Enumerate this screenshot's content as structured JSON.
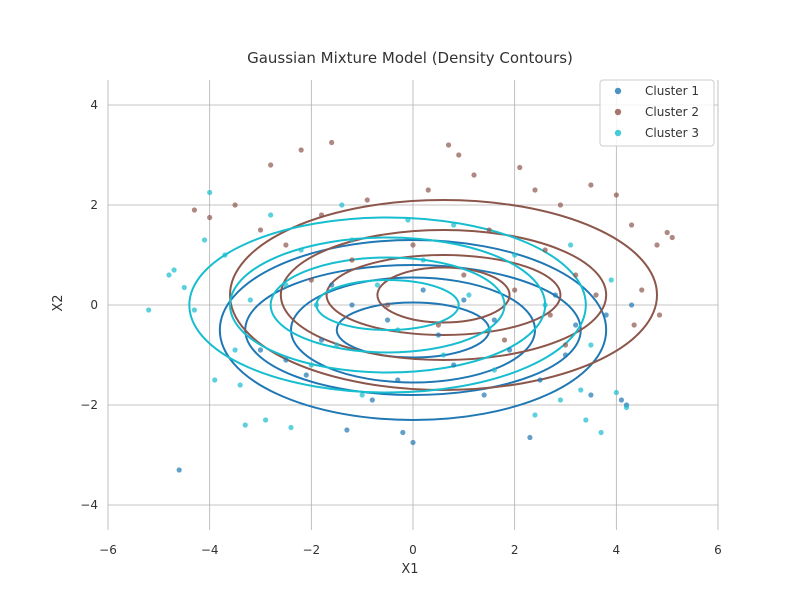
{
  "chart_data": {
    "type": "scatter",
    "title": "Gaussian Mixture Model (Density Contours)",
    "xlabel": "X1",
    "ylabel": "X2",
    "xlim": [
      -6,
      6
    ],
    "ylim": [
      -4.5,
      4.5
    ],
    "x_ticks": [
      -6,
      -4,
      -2,
      0,
      2,
      4,
      6
    ],
    "y_ticks": [
      -4,
      -2,
      0,
      2,
      4
    ],
    "x_tick_labels": [
      "−6",
      "−4",
      "−2",
      "0",
      "2",
      "4",
      "6"
    ],
    "y_tick_labels": [
      "−4",
      "−2",
      "0",
      "2",
      "4"
    ],
    "grid": true,
    "legend_position": "top-right",
    "series": [
      {
        "name": "Cluster 1",
        "color": "#1f77b4",
        "center": [
          0,
          -0.5
        ],
        "std": [
          2.0,
          1.0
        ],
        "contour_semi_axes": [
          [
            1.5,
            0.55
          ],
          [
            2.4,
            1.05
          ],
          [
            3.3,
            1.3
          ],
          [
            3.8,
            1.8
          ]
        ],
        "points": [
          [
            -4.6,
            -3.3
          ],
          [
            0.0,
            -2.75
          ],
          [
            -0.2,
            -2.55
          ],
          [
            2.3,
            -2.65
          ],
          [
            4.1,
            -1.9
          ],
          [
            4.2,
            -2.0
          ],
          [
            3.5,
            -1.8
          ],
          [
            -1.3,
            -2.5
          ],
          [
            -0.8,
            -1.9
          ],
          [
            1.4,
            -1.8
          ],
          [
            2.5,
            -1.5
          ],
          [
            -2.1,
            -1.4
          ],
          [
            -3.0,
            -0.9
          ],
          [
            3.2,
            -0.4
          ],
          [
            3.8,
            -0.2
          ],
          [
            4.3,
            0.0
          ],
          [
            0.5,
            -0.6
          ],
          [
            -0.5,
            -0.3
          ],
          [
            1.0,
            0.1
          ],
          [
            -1.2,
            0.0
          ],
          [
            1.9,
            -0.9
          ],
          [
            -1.8,
            -0.7
          ],
          [
            0.2,
            0.3
          ],
          [
            2.8,
            0.2
          ],
          [
            -2.5,
            -1.1
          ],
          [
            0.8,
            -1.2
          ],
          [
            -0.3,
            -1.5
          ],
          [
            1.6,
            -0.3
          ],
          [
            -1.6,
            0.4
          ],
          [
            3.0,
            -1.0
          ]
        ]
      },
      {
        "name": "Cluster 2",
        "color": "#8c564b",
        "center": [
          0.6,
          0.2
        ],
        "std": [
          2.2,
          1.0
        ],
        "contour_semi_axes": [
          [
            1.3,
            0.55
          ],
          [
            2.3,
            0.8
          ],
          [
            3.2,
            1.3
          ],
          [
            4.2,
            1.9
          ]
        ],
        "points": [
          [
            -2.8,
            2.8
          ],
          [
            -2.2,
            3.1
          ],
          [
            -1.6,
            3.25
          ],
          [
            0.7,
            3.2
          ],
          [
            0.9,
            3.0
          ],
          [
            1.2,
            2.6
          ],
          [
            2.1,
            2.75
          ],
          [
            2.9,
            2.0
          ],
          [
            3.5,
            2.4
          ],
          [
            4.0,
            2.2
          ],
          [
            4.3,
            1.6
          ],
          [
            4.8,
            1.2
          ],
          [
            5.0,
            1.45
          ],
          [
            5.1,
            1.35
          ],
          [
            4.85,
            -0.2
          ],
          [
            4.35,
            -0.4
          ],
          [
            4.5,
            0.3
          ],
          [
            -4.0,
            1.75
          ],
          [
            -4.3,
            1.9
          ],
          [
            -3.5,
            2.0
          ],
          [
            -1.8,
            1.8
          ],
          [
            -0.9,
            2.1
          ],
          [
            0.3,
            2.3
          ],
          [
            1.5,
            1.5
          ],
          [
            2.6,
            1.1
          ],
          [
            3.2,
            0.6
          ],
          [
            3.6,
            0.2
          ],
          [
            -2.5,
            1.2
          ],
          [
            -1.2,
            0.9
          ],
          [
            0.0,
            1.2
          ],
          [
            1.0,
            0.6
          ],
          [
            2.0,
            0.3
          ],
          [
            -0.5,
            0.0
          ],
          [
            0.5,
            -0.4
          ],
          [
            1.8,
            -0.7
          ],
          [
            2.7,
            -0.2
          ],
          [
            3.0,
            -0.8
          ],
          [
            -2.0,
            0.5
          ],
          [
            -3.0,
            1.5
          ],
          [
            2.4,
            2.3
          ]
        ]
      },
      {
        "name": "Cluster 3",
        "color": "#17becf",
        "center": [
          -0.5,
          0.0
        ],
        "std": [
          2.3,
          1.0
        ],
        "contour_semi_axes": [
          [
            1.4,
            0.5
          ],
          [
            2.3,
            0.95
          ],
          [
            3.1,
            1.35
          ],
          [
            3.9,
            1.75
          ]
        ],
        "points": [
          [
            -5.2,
            -0.1
          ],
          [
            -4.8,
            0.6
          ],
          [
            -4.7,
            0.7
          ],
          [
            -4.5,
            0.35
          ],
          [
            -4.3,
            -0.1
          ],
          [
            -4.0,
            2.25
          ],
          [
            -3.7,
            1.0
          ],
          [
            -3.5,
            -0.9
          ],
          [
            -3.4,
            -1.6
          ],
          [
            -3.3,
            -2.4
          ],
          [
            -2.9,
            -2.3
          ],
          [
            -2.4,
            -2.45
          ],
          [
            -2.8,
            1.8
          ],
          [
            -2.2,
            1.1
          ],
          [
            -1.9,
            0.0
          ],
          [
            -1.5,
            -0.8
          ],
          [
            -1.2,
            1.3
          ],
          [
            -0.7,
            0.4
          ],
          [
            -0.3,
            -0.5
          ],
          [
            0.2,
            0.9
          ],
          [
            0.6,
            -1.0
          ],
          [
            1.1,
            0.2
          ],
          [
            1.6,
            -1.3
          ],
          [
            2.0,
            1.0
          ],
          [
            2.4,
            -2.2
          ],
          [
            2.9,
            -1.9
          ],
          [
            3.3,
            -1.7
          ],
          [
            3.4,
            -2.3
          ],
          [
            3.7,
            -2.55
          ],
          [
            4.2,
            -2.05
          ],
          [
            4.0,
            -1.75
          ],
          [
            3.9,
            0.5
          ],
          [
            3.1,
            1.2
          ],
          [
            -3.9,
            -1.5
          ],
          [
            -2.5,
            0.4
          ],
          [
            -1.0,
            -1.8
          ],
          [
            0.8,
            1.6
          ],
          [
            1.5,
            -0.5
          ],
          [
            -4.1,
            1.3
          ],
          [
            -3.2,
            0.1
          ],
          [
            -2.0,
            -1.2
          ],
          [
            -0.1,
            1.7
          ],
          [
            2.6,
            0.0
          ],
          [
            3.5,
            -0.8
          ],
          [
            -1.4,
            2.0
          ]
        ]
      }
    ]
  }
}
